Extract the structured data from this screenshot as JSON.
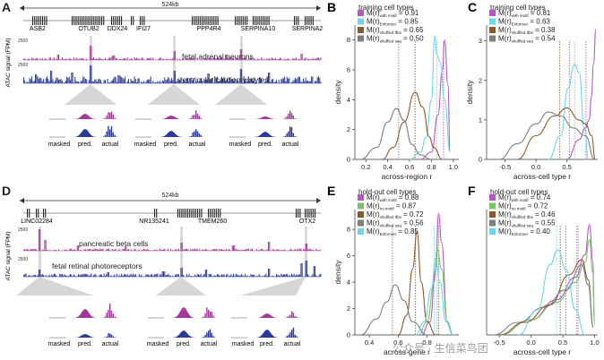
{
  "panels": {
    "A": {
      "letter": "A",
      "scale": "524kb",
      "genes": [
        "ASB2",
        "OTUB2",
        "DDX24",
        "IFI27",
        "PPP4R4",
        "SERPINA10",
        "SERPINA2"
      ],
      "ylabel": "ATAC signal (FPM)",
      "tracks": [
        {
          "name": "fetal adrenal neurons",
          "max": "2500",
          "color": "#a33a9b"
        },
        {
          "name": "ventricular cardiomyocytes",
          "max": "2500",
          "color": "#2a3a9a"
        }
      ],
      "zoom_labels": [
        "masked",
        "pred.",
        "actual"
      ]
    },
    "D": {
      "letter": "D",
      "scale": "524kb",
      "genes": [
        "LINC02284",
        "NR135241",
        "TMEM260",
        "OTX2"
      ],
      "ylabel": "ATAC signal (FPM)",
      "tracks": [
        {
          "name": "pancreatic beta cells",
          "max": "2500",
          "color": "#a33a9b"
        },
        {
          "name": "fetal retinal photoreceptors",
          "max": "2500",
          "color": "#2a3a9a"
        }
      ],
      "zoom_labels": [
        "masked",
        "pred.",
        "actual"
      ]
    }
  },
  "watermark": "公众号 · 生信菜鸟团",
  "chart_data": [
    {
      "panel": "B",
      "type": "line",
      "legend_title": "training cell types",
      "ylabel": "density",
      "xlabel": "across-region r",
      "xlim": [
        0.1,
        1.05
      ],
      "ylim": [
        0,
        9
      ],
      "xticks": [
        0.2,
        0.4,
        0.6,
        0.8,
        1.0
      ],
      "yticks": [
        0,
        2,
        4,
        6,
        8
      ],
      "xtick_labels": [
        "0.2",
        "0.4",
        "0.6",
        "0.8",
        "1.0"
      ],
      "series": [
        {
          "label": "M(r)",
          "sub": "with motif",
          "value": "= 0.91",
          "color": "#b25abf",
          "mean": 0.91,
          "x": [
            0.7,
            0.8,
            0.86,
            0.9,
            0.92,
            0.95,
            0.97
          ],
          "y": [
            0,
            0.5,
            3,
            6,
            8,
            5,
            0.5
          ]
        },
        {
          "label": "M(r)",
          "sub": "Enformer",
          "value": "= 0.85",
          "color": "#6dd6e8",
          "mean": 0.85,
          "x": [
            0.6,
            0.7,
            0.75,
            0.8,
            0.83,
            0.85,
            0.88,
            0.92,
            0.97
          ],
          "y": [
            0,
            0.5,
            1.5,
            4,
            8.3,
            7,
            6.5,
            4,
            0.5
          ]
        },
        {
          "label": "M(r)",
          "sub": "shuffled tfbs",
          "value": "= 0.65",
          "color": "#8a5a2e",
          "mean": 0.65,
          "x": [
            0.35,
            0.45,
            0.55,
            0.65,
            0.72,
            0.78,
            0.82,
            0.9
          ],
          "y": [
            0,
            0.8,
            2.5,
            4.5,
            3.5,
            1.5,
            0.8,
            0
          ]
        },
        {
          "label": "M(r)",
          "sub": "shuffled seq",
          "value": "= 0.50",
          "color": "#7e7e7e",
          "mean": 0.5,
          "x": [
            0.15,
            0.3,
            0.4,
            0.48,
            0.55,
            0.62,
            0.7,
            0.8
          ],
          "y": [
            0,
            0.8,
            2.5,
            3.4,
            2.6,
            1,
            0.3,
            0
          ]
        }
      ]
    },
    {
      "panel": "C",
      "type": "line",
      "legend_title": "training cell types",
      "ylabel": "density",
      "xlabel": "across-cell type r",
      "xlim": [
        -0.8,
        1.0
      ],
      "ylim": [
        0,
        3.4
      ],
      "xticks": [
        -0.5,
        0.0,
        0.5
      ],
      "yticks": [
        0,
        1,
        2,
        3
      ],
      "xtick_labels": [
        "-0.5",
        "0.0",
        "0.5"
      ],
      "series": [
        {
          "label": "M(r)",
          "sub": "with motif",
          "value": "= 0.81",
          "color": "#b25abf",
          "mean": 0.81,
          "x": [
            0.5,
            0.7,
            0.8,
            0.86,
            0.9,
            0.93,
            0.97
          ],
          "y": [
            0,
            0.5,
            0.8,
            1,
            1.6,
            2.4,
            3.3
          ]
        },
        {
          "label": "M(r)",
          "sub": "Enformer",
          "value": "= 0.63",
          "color": "#6dd6e8",
          "mean": 0.63,
          "x": [
            0.2,
            0.4,
            0.52,
            0.62,
            0.7,
            0.78,
            0.85
          ],
          "y": [
            0,
            0.6,
            1.8,
            2.4,
            2.2,
            0.8,
            0
          ]
        },
        {
          "label": "M(r)",
          "sub": "shuffled tfbs",
          "value": "= 0.38",
          "color": "#8a5a2e",
          "mean": 0.38,
          "x": [
            -0.3,
            0.0,
            0.3,
            0.5,
            0.7,
            0.8,
            0.9,
            0.96
          ],
          "y": [
            0,
            0.6,
            1.1,
            1.3,
            1.0,
            0.9,
            0.6,
            0
          ]
        },
        {
          "label": "M(r)",
          "sub": "shuffled seq",
          "value": "= 0.54",
          "color": "#7e7e7e",
          "mean": 0.54,
          "x": [
            -0.6,
            -0.3,
            0.0,
            0.2,
            0.4,
            0.6,
            0.8,
            0.95
          ],
          "y": [
            0,
            0.4,
            0.9,
            1.2,
            1.1,
            0.8,
            0.6,
            0
          ]
        }
      ]
    },
    {
      "panel": "E",
      "type": "line",
      "legend_title": "hold-out cell types",
      "ylabel": "density",
      "xlabel": "across-gene r",
      "xlim": [
        0.3,
        1.02
      ],
      "ylim": [
        0,
        9.5
      ],
      "xticks": [
        0.4,
        0.6,
        0.8
      ],
      "yticks": [
        0,
        2,
        4,
        6,
        8
      ],
      "xtick_labels": [
        "0.4",
        "0.6",
        "0.8"
      ],
      "series": [
        {
          "label": "M(r)",
          "sub": "with motif",
          "value": "= 0.88",
          "color": "#b25abf",
          "mean": 0.88,
          "x": [
            0.76,
            0.82,
            0.86,
            0.88,
            0.9,
            0.94,
            0.98
          ],
          "y": [
            0,
            1,
            5,
            9.2,
            7,
            1,
            0
          ]
        },
        {
          "label": "M(r)",
          "sub": "no motif",
          "value": "= 0.87",
          "color": "#7ac36a",
          "mean": 0.87,
          "x": [
            0.74,
            0.8,
            0.85,
            0.87,
            0.9,
            0.94,
            0.98
          ],
          "y": [
            0,
            1,
            4,
            6.5,
            5,
            1,
            0
          ]
        },
        {
          "label": "M(r)",
          "sub": "shuffled tfbs",
          "value": "= 0.72",
          "color": "#8a5a2e",
          "mean": 0.72,
          "x": [
            0.6,
            0.66,
            0.7,
            0.73,
            0.76,
            0.8,
            0.86
          ],
          "y": [
            0,
            1.5,
            5,
            7.8,
            4,
            1,
            0
          ]
        },
        {
          "label": "M(r)",
          "sub": "shuffled seq",
          "value": "= 0.56",
          "color": "#7e7e7e",
          "mean": 0.56,
          "x": [
            0.34,
            0.45,
            0.52,
            0.58,
            0.64,
            0.7,
            0.8
          ],
          "y": [
            0,
            1.2,
            2.5,
            3.8,
            2.6,
            1,
            0
          ]
        },
        {
          "label": "M(r)",
          "sub": "Enformer",
          "value": "= 0.85",
          "color": "#6dd6e8",
          "mean": 0.85,
          "x": [
            0.72,
            0.78,
            0.83,
            0.86,
            0.89,
            0.93,
            0.98
          ],
          "y": [
            0,
            1,
            3.5,
            5.8,
            4,
            1,
            0
          ]
        }
      ]
    },
    {
      "panel": "F",
      "type": "line",
      "legend_title": "hold-out cell types",
      "ylabel": "",
      "xlabel": "across-cell type r",
      "xlim": [
        -0.7,
        1.05
      ],
      "ylim": [
        0,
        5
      ],
      "xticks": [
        -0.5,
        0.0,
        0.5,
        1.0
      ],
      "yticks": [],
      "xtick_labels": [
        "-0.5",
        "0.0",
        "0.5",
        "1.0"
      ],
      "series": [
        {
          "label": "M(r)",
          "sub": "with motif",
          "value": "= 0.74",
          "color": "#b25abf",
          "mean": 0.74,
          "x": [
            -0.5,
            0.0,
            0.4,
            0.7,
            0.85,
            0.92,
            0.97,
            1.0
          ],
          "y": [
            0,
            0.6,
            1.4,
            2.3,
            3.2,
            4.4,
            3.0,
            0.5
          ]
        },
        {
          "label": "M(r)",
          "sub": "no motif",
          "value": "= 0.72",
          "color": "#7ac36a",
          "mean": 0.72,
          "x": [
            -0.5,
            0.0,
            0.4,
            0.7,
            0.85,
            0.92,
            0.97,
            1.0
          ],
          "y": [
            0,
            0.6,
            1.3,
            2.1,
            2.9,
            3.8,
            2.5,
            0.4
          ]
        },
        {
          "label": "M(r)",
          "sub": "shuffled tfbs",
          "value": "= 0.46",
          "color": "#8a5a2e",
          "mean": 0.46,
          "x": [
            -0.5,
            -0.1,
            0.3,
            0.6,
            0.8,
            0.9,
            0.98
          ],
          "y": [
            0,
            0.5,
            1.2,
            2.4,
            3.0,
            2.2,
            0.3
          ]
        },
        {
          "label": "M(r)",
          "sub": "shuffled seq",
          "value": "= 0.55",
          "color": "#7e7e7e",
          "mean": 0.55,
          "x": [
            -0.6,
            -0.2,
            0.2,
            0.55,
            0.8,
            0.9,
            0.98
          ],
          "y": [
            0,
            0.5,
            1.1,
            1.8,
            2.8,
            2.0,
            0.3
          ]
        },
        {
          "label": "M(r)",
          "sub": "Enformer",
          "value": "= 0.40",
          "color": "#6dd6e8",
          "mean": 0.4,
          "x": [
            -0.2,
            0.1,
            0.3,
            0.42,
            0.55,
            0.7,
            0.85
          ],
          "y": [
            0,
            1.0,
            2.8,
            3.4,
            2.6,
            1.0,
            0
          ]
        }
      ]
    }
  ]
}
